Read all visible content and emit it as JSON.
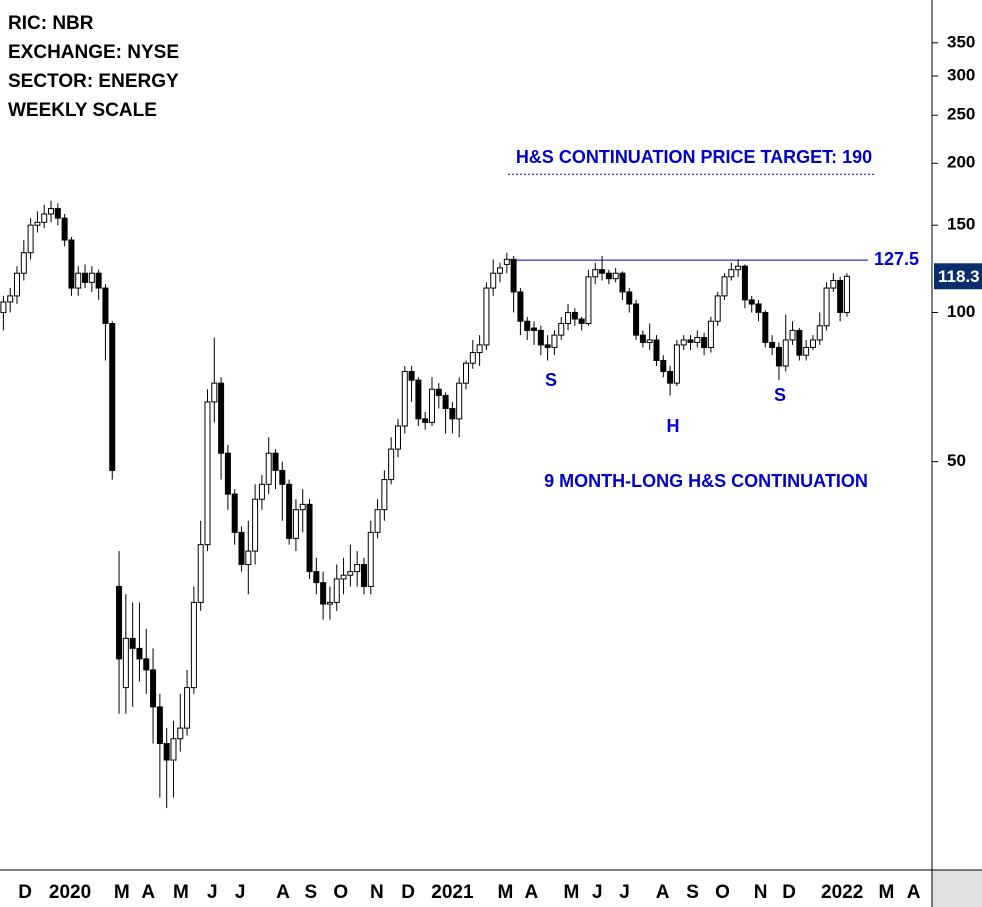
{
  "chart_data": {
    "type": "candlestick",
    "header_lines": [
      "RIC: NBR",
      "EXCHANGE: NYSE",
      "SECTOR: ENERGY",
      "WEEKLY SCALE"
    ],
    "target": 190,
    "target_label": "H&S CONTINUATION PRICE TARGET: 190",
    "neckline": 127.5,
    "pattern_labels": [
      "S",
      "H",
      "S"
    ],
    "pattern_title": "9 MONTH-LONG H&S CONTINUATION",
    "log_scale": true,
    "up_color": "#ffffff",
    "down_color": "#000000",
    "line_color": "#0000cc",
    "last_price_color": "#0a2e6b",
    "ylim": [
      7.5,
      427
    ],
    "yticks": [
      50,
      100,
      150,
      200,
      250,
      300,
      350
    ],
    "xlim": [
      -0.5,
      136.5
    ],
    "xticks": [
      {
        "value": 3.2,
        "label": "D"
      },
      {
        "value": 9.8,
        "label": "2020"
      },
      {
        "value": 17.4,
        "label": "M"
      },
      {
        "value": 21.3,
        "label": "A"
      },
      {
        "value": 26.1,
        "label": "M"
      },
      {
        "value": 30.7,
        "label": "J"
      },
      {
        "value": 34.8,
        "label": "J"
      },
      {
        "value": 41.1,
        "label": "A"
      },
      {
        "value": 45.2,
        "label": "S"
      },
      {
        "value": 49.6,
        "label": "O"
      },
      {
        "value": 54.9,
        "label": "N"
      },
      {
        "value": 59.5,
        "label": "D"
      },
      {
        "value": 66,
        "label": "2021"
      },
      {
        "value": 73.8,
        "label": "M"
      },
      {
        "value": 77.6,
        "label": "A"
      },
      {
        "value": 83.5,
        "label": "M"
      },
      {
        "value": 87.3,
        "label": "J"
      },
      {
        "value": 91.3,
        "label": "J"
      },
      {
        "value": 96.9,
        "label": "A"
      },
      {
        "value": 101.3,
        "label": "S"
      },
      {
        "value": 105.7,
        "label": "O"
      },
      {
        "value": 111.3,
        "label": "N"
      },
      {
        "value": 115.5,
        "label": "D"
      },
      {
        "value": 123.3,
        "label": "2022"
      },
      {
        "value": 129.8,
        "label": "M"
      },
      {
        "value": 133.8,
        "label": "A"
      }
    ],
    "open": [
      100,
      105,
      108,
      120,
      132,
      150,
      152,
      158,
      162,
      155,
      140,
      112,
      120,
      115,
      120,
      112,
      95,
      28,
      17.5,
      22,
      21,
      20,
      19,
      16,
      13.5,
      12.5,
      13.8,
      14.5,
      17.5,
      26,
      34,
      66,
      72,
      52,
      43,
      36,
      31,
      33,
      42,
      45,
      52,
      48,
      45,
      35,
      40,
      41,
      30,
      28.5,
      25.8,
      26,
      29,
      29.5,
      30,
      31,
      28,
      36,
      40,
      46,
      53,
      59,
      76,
      73,
      61,
      60,
      70,
      68,
      64,
      61,
      72,
      79,
      83,
      86,
      112,
      120,
      125,
      128,
      110,
      96,
      93,
      92,
      86,
      85,
      90,
      95,
      100,
      97,
      95,
      118,
      122,
      120,
      117,
      120,
      110,
      104,
      90,
      87,
      88,
      80,
      76,
      72,
      86,
      88,
      87,
      89,
      85,
      96,
      108,
      118,
      122,
      124,
      106,
      104,
      100,
      87,
      85,
      78,
      88,
      92,
      82,
      85,
      88,
      94,
      112,
      116,
      100
    ],
    "high": [
      108,
      112,
      124,
      140,
      155,
      160,
      165,
      168,
      166,
      158,
      142,
      124,
      125,
      124,
      122,
      114,
      96,
      33,
      27,
      26,
      26,
      23,
      21,
      17,
      14.5,
      15,
      17,
      19,
      28,
      38,
      70,
      89,
      74,
      54,
      44,
      37,
      38,
      45,
      47,
      56,
      53,
      50,
      46,
      42,
      44,
      42,
      32,
      30,
      28,
      31,
      32,
      34,
      33,
      32,
      38,
      42,
      48,
      56,
      61,
      78,
      78,
      74,
      63,
      74,
      72,
      69,
      66,
      74,
      80,
      88,
      90,
      115,
      128,
      126,
      132,
      130,
      112,
      98,
      96,
      94,
      90,
      92,
      98,
      104,
      102,
      98,
      122,
      126,
      130,
      122,
      123,
      121,
      112,
      106,
      92,
      95,
      90,
      82,
      78,
      88,
      90,
      90,
      92,
      91,
      98,
      110,
      120,
      126,
      128,
      125,
      108,
      106,
      101,
      90,
      87,
      99,
      96,
      93,
      88,
      90,
      100,
      115,
      120,
      118,
      120
    ],
    "low": [
      92,
      100,
      104,
      116,
      128,
      145,
      148,
      152,
      150,
      136,
      108,
      108,
      112,
      110,
      106,
      80,
      46,
      15.5,
      15.5,
      16,
      18,
      17,
      13.5,
      10.5,
      10,
      10.5,
      13,
      14,
      17,
      25,
      33,
      60,
      46,
      40,
      34,
      30,
      27,
      31,
      40,
      43,
      44,
      38,
      34,
      33,
      36,
      29,
      27,
      24,
      24,
      25,
      27,
      28,
      28,
      27,
      27,
      35,
      38,
      45,
      51,
      57,
      66,
      59,
      58,
      59,
      64,
      57,
      57,
      56,
      70,
      77,
      78,
      84,
      108,
      115,
      120,
      100,
      90,
      88,
      86,
      82,
      80,
      82,
      88,
      92,
      94,
      92,
      94,
      114,
      116,
      114,
      115,
      106,
      100,
      88,
      85,
      84,
      78,
      74,
      68,
      71,
      84,
      84,
      85,
      82,
      83,
      94,
      106,
      116,
      118,
      102,
      100,
      96,
      85,
      82,
      73,
      76,
      86,
      80,
      80,
      84,
      86,
      92,
      110,
      96,
      98
    ],
    "close": [
      105,
      108,
      120,
      132,
      150,
      152,
      158,
      162,
      155,
      140,
      112,
      120,
      115,
      120,
      112,
      95,
      48,
      20,
      22,
      21,
      20,
      19,
      16,
      13.5,
      12.5,
      13.8,
      14.5,
      17.5,
      26,
      34,
      66,
      72,
      52,
      43,
      36,
      31,
      33,
      42,
      45,
      52,
      48,
      45,
      35,
      40,
      41,
      30,
      28.5,
      25.8,
      26,
      29,
      29.5,
      30,
      31,
      28,
      36,
      40,
      46,
      53,
      59,
      76,
      73,
      61,
      60,
      70,
      68,
      64,
      61,
      72,
      79,
      83,
      86,
      112,
      120,
      123,
      128,
      110,
      96,
      92,
      92,
      86,
      85,
      90,
      95,
      100,
      97,
      95,
      118,
      122,
      120,
      117,
      120,
      110,
      104,
      90,
      87,
      88,
      80,
      76,
      72,
      86,
      88,
      87,
      89,
      85,
      96,
      108,
      118,
      122,
      124,
      106,
      104,
      100,
      87,
      85,
      78,
      88,
      92,
      82,
      85,
      88,
      94,
      112,
      116,
      100,
      118.3
    ]
  }
}
